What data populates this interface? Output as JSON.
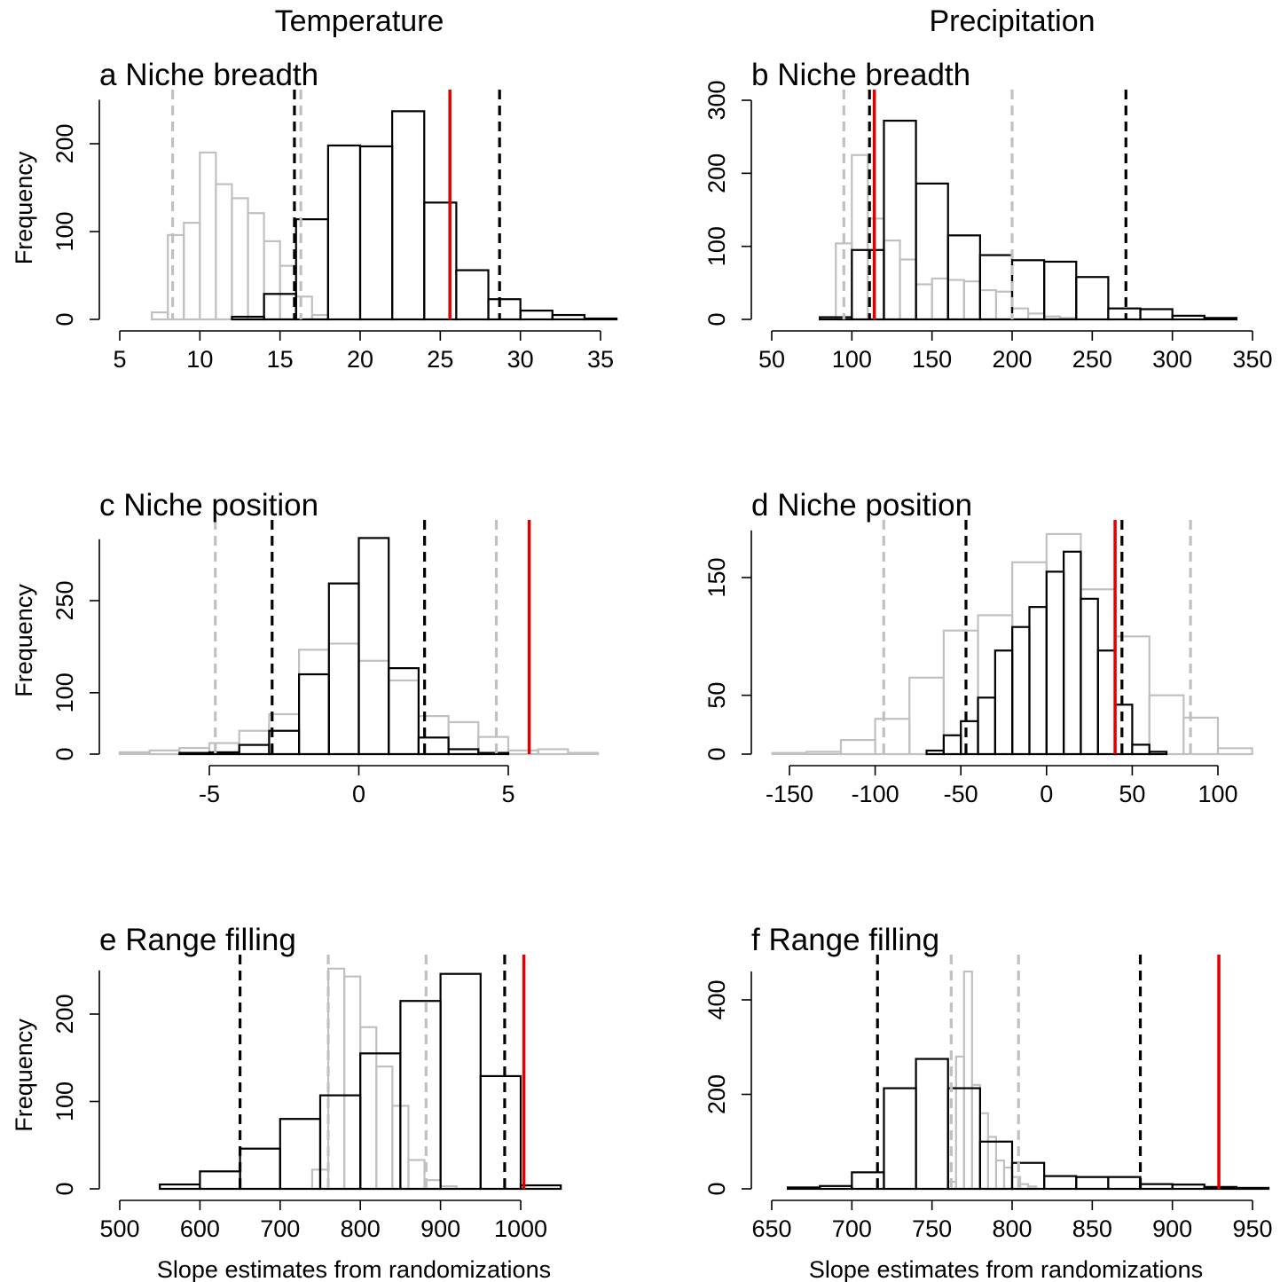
{
  "column_titles": [
    "Temperature",
    "Precipitation"
  ],
  "colors": {
    "randomized": "#000000",
    "null": "#c0c0c0",
    "observed": "#e00000"
  },
  "chart_data": [
    {
      "type": "histogram",
      "title": "a Niche breadth",
      "ylabel": "Frequency",
      "xlabel": "",
      "xlim": [
        5,
        36
      ],
      "ylim": [
        0,
        250
      ],
      "xticks": [
        5,
        10,
        15,
        20,
        25,
        30,
        35
      ],
      "yticks": [
        0,
        100,
        200
      ],
      "series": [
        {
          "color": "#c0c0c0",
          "bins": [
            [
              7,
              8,
              8
            ],
            [
              8,
              9,
              96
            ],
            [
              9,
              10,
              110
            ],
            [
              10,
              11,
              190
            ],
            [
              11,
              12,
              154
            ],
            [
              12,
              13,
              138
            ],
            [
              13,
              14,
              121
            ],
            [
              14,
              15,
              89
            ],
            [
              15,
              16,
              61
            ],
            [
              16,
              17,
              26
            ],
            [
              17,
              18,
              5
            ]
          ]
        },
        {
          "color": "#000000",
          "bins": [
            [
              12,
              14,
              3
            ],
            [
              14,
              16,
              29
            ],
            [
              16,
              18,
              114
            ],
            [
              18,
              20,
              198
            ],
            [
              20,
              22,
              197
            ],
            [
              22,
              24,
              237
            ],
            [
              24,
              26,
              133
            ],
            [
              26,
              28,
              56
            ],
            [
              28,
              30,
              23
            ],
            [
              30,
              32,
              10
            ],
            [
              32,
              34,
              5
            ],
            [
              34,
              36,
              1
            ]
          ]
        }
      ],
      "lines": [
        {
          "x": 8.3,
          "color": "#c0c0c0",
          "style": "dashed"
        },
        {
          "x": 16.3,
          "color": "#c0c0c0",
          "style": "dashed"
        },
        {
          "x": 15.9,
          "color": "#000000",
          "style": "dashed"
        },
        {
          "x": 28.7,
          "color": "#000000",
          "style": "dashed"
        },
        {
          "x": 25.6,
          "color": "#e00000",
          "style": "solid"
        }
      ]
    },
    {
      "type": "histogram",
      "title": "b  Niche breadth",
      "ylabel": "",
      "xlabel": "",
      "xlim": [
        50,
        350
      ],
      "ylim": [
        0,
        300
      ],
      "xticks": [
        50,
        100,
        150,
        200,
        250,
        300,
        350
      ],
      "yticks": [
        0,
        100,
        200,
        300
      ],
      "series": [
        {
          "color": "#c0c0c0",
          "bins": [
            [
              90,
              100,
              104
            ],
            [
              100,
              110,
              225
            ],
            [
              110,
              120,
              138
            ],
            [
              120,
              130,
              108
            ],
            [
              130,
              140,
              82
            ],
            [
              140,
              150,
              48
            ],
            [
              150,
              160,
              56
            ],
            [
              160,
              170,
              54
            ],
            [
              170,
              180,
              52
            ],
            [
              180,
              190,
              40
            ],
            [
              190,
              200,
              38
            ],
            [
              200,
              210,
              15
            ],
            [
              210,
              220,
              8
            ],
            [
              220,
              230,
              4
            ],
            [
              230,
              240,
              2
            ]
          ]
        },
        {
          "color": "#000000",
          "bins": [
            [
              80,
              100,
              3
            ],
            [
              100,
              120,
              95
            ],
            [
              120,
              140,
              272
            ],
            [
              140,
              160,
              186
            ],
            [
              160,
              180,
              115
            ],
            [
              180,
              200,
              88
            ],
            [
              200,
              220,
              81
            ],
            [
              220,
              240,
              79
            ],
            [
              240,
              260,
              58
            ],
            [
              260,
              280,
              15
            ],
            [
              280,
              300,
              14
            ],
            [
              300,
              320,
              5
            ],
            [
              320,
              340,
              2
            ]
          ]
        }
      ],
      "lines": [
        {
          "x": 95,
          "color": "#c0c0c0",
          "style": "dashed"
        },
        {
          "x": 200,
          "color": "#c0c0c0",
          "style": "dashed"
        },
        {
          "x": 111,
          "color": "#000000",
          "style": "dashed"
        },
        {
          "x": 271,
          "color": "#000000",
          "style": "dashed"
        },
        {
          "x": 114,
          "color": "#e00000",
          "style": "solid"
        }
      ]
    },
    {
      "type": "histogram",
      "title": "c Niche position",
      "ylabel": "Frequency",
      "xlabel": "",
      "xlim": [
        -8,
        8
      ],
      "ylim": [
        0,
        350
      ],
      "xticks": [
        -5,
        0,
        5
      ],
      "yticks": [
        0,
        100,
        250
      ],
      "series": [
        {
          "color": "#c0c0c0",
          "bins": [
            [
              -8,
              -7,
              3
            ],
            [
              -7,
              -6,
              6
            ],
            [
              -6,
              -5,
              10
            ],
            [
              -5,
              -4,
              18
            ],
            [
              -4,
              -3,
              38
            ],
            [
              -3,
              -2,
              65
            ],
            [
              -2,
              -1,
              170
            ],
            [
              -1,
              0,
              180
            ],
            [
              0,
              1,
              152
            ],
            [
              1,
              2,
              120
            ],
            [
              2,
              3,
              62
            ],
            [
              3,
              4,
              52
            ],
            [
              4,
              5,
              28
            ],
            [
              5,
              6,
              6
            ],
            [
              6,
              7,
              8
            ],
            [
              7,
              8,
              2
            ]
          ]
        },
        {
          "color": "#000000",
          "bins": [
            [
              -6,
              -5,
              2
            ],
            [
              -5,
              -4,
              3
            ],
            [
              -4,
              -3,
              15
            ],
            [
              -3,
              -2,
              38
            ],
            [
              -2,
              -1,
              130
            ],
            [
              -1,
              0,
              278
            ],
            [
              0,
              1,
              352
            ],
            [
              1,
              2,
              140
            ],
            [
              2,
              3,
              27
            ],
            [
              3,
              4,
              8
            ],
            [
              4,
              5,
              2
            ]
          ]
        }
      ],
      "lines": [
        {
          "x": -4.8,
          "color": "#c0c0c0",
          "style": "dashed"
        },
        {
          "x": 4.6,
          "color": "#c0c0c0",
          "style": "dashed"
        },
        {
          "x": -2.9,
          "color": "#000000",
          "style": "dashed"
        },
        {
          "x": 2.2,
          "color": "#000000",
          "style": "dashed"
        },
        {
          "x": 5.7,
          "color": "#e00000",
          "style": "solid"
        }
      ]
    },
    {
      "type": "histogram",
      "title": "d Niche position",
      "ylabel": "",
      "xlabel": "",
      "xlim": [
        -160,
        120
      ],
      "ylim": [
        0,
        190
      ],
      "xticks": [
        -150,
        -100,
        -50,
        0,
        50,
        100
      ],
      "yticks": [
        0,
        50,
        150
      ],
      "series": [
        {
          "color": "#c0c0c0",
          "bins": [
            [
              -160,
              -140,
              1
            ],
            [
              -140,
              -120,
              2
            ],
            [
              -120,
              -100,
              12
            ],
            [
              -100,
              -80,
              30
            ],
            [
              -80,
              -60,
              65
            ],
            [
              -60,
              -40,
              105
            ],
            [
              -40,
              -20,
              118
            ],
            [
              -20,
              0,
              163
            ],
            [
              0,
              20,
              187
            ],
            [
              20,
              40,
              140
            ],
            [
              40,
              60,
              100
            ],
            [
              60,
              80,
              50
            ],
            [
              80,
              100,
              31
            ],
            [
              100,
              120,
              5
            ]
          ]
        },
        {
          "color": "#000000",
          "bins": [
            [
              -70,
              -60,
              3
            ],
            [
              -60,
              -50,
              16
            ],
            [
              -50,
              -40,
              28
            ],
            [
              -40,
              -30,
              48
            ],
            [
              -30,
              -20,
              88
            ],
            [
              -20,
              -10,
              108
            ],
            [
              -10,
              0,
              125
            ],
            [
              0,
              10,
              155
            ],
            [
              10,
              20,
              172
            ],
            [
              20,
              30,
              132
            ],
            [
              30,
              40,
              88
            ],
            [
              40,
              50,
              42
            ],
            [
              50,
              60,
              8
            ],
            [
              60,
              70,
              2
            ]
          ]
        }
      ],
      "lines": [
        {
          "x": -95,
          "color": "#c0c0c0",
          "style": "dashed"
        },
        {
          "x": 84,
          "color": "#c0c0c0",
          "style": "dashed"
        },
        {
          "x": -47,
          "color": "#000000",
          "style": "dashed"
        },
        {
          "x": 44,
          "color": "#000000",
          "style": "dashed"
        },
        {
          "x": 40,
          "color": "#e00000",
          "style": "solid"
        }
      ]
    },
    {
      "type": "histogram",
      "title": "e Range filling",
      "ylabel": "Frequency",
      "xlabel": "Slope estimates from randomizations",
      "xlim": [
        500,
        1100
      ],
      "ylim": [
        0,
        250
      ],
      "xticks": [
        500,
        600,
        700,
        800,
        900,
        1000
      ],
      "yticks": [
        0,
        100,
        200
      ],
      "series": [
        {
          "color": "#c0c0c0",
          "bins": [
            [
              740,
              760,
              22
            ],
            [
              760,
              780,
              252
            ],
            [
              780,
              800,
              243
            ],
            [
              800,
              820,
              185
            ],
            [
              820,
              840,
              140
            ],
            [
              840,
              860,
              95
            ],
            [
              860,
              880,
              33
            ],
            [
              880,
              900,
              10
            ],
            [
              900,
              920,
              3
            ]
          ]
        },
        {
          "color": "#000000",
          "bins": [
            [
              550,
              600,
              5
            ],
            [
              600,
              650,
              20
            ],
            [
              650,
              700,
              46
            ],
            [
              700,
              750,
              80
            ],
            [
              750,
              800,
              107
            ],
            [
              800,
              850,
              155
            ],
            [
              850,
              900,
              215
            ],
            [
              900,
              950,
              246
            ],
            [
              950,
              1000,
              129
            ],
            [
              1000,
              1050,
              4
            ]
          ]
        }
      ],
      "lines": [
        {
          "x": 760,
          "color": "#c0c0c0",
          "style": "dashed"
        },
        {
          "x": 882,
          "color": "#c0c0c0",
          "style": "dashed"
        },
        {
          "x": 650,
          "color": "#000000",
          "style": "dashed"
        },
        {
          "x": 980,
          "color": "#000000",
          "style": "dashed"
        },
        {
          "x": 1004,
          "color": "#e00000",
          "style": "solid"
        }
      ]
    },
    {
      "type": "histogram",
      "title": "f Range filling",
      "ylabel": "",
      "xlabel": "Slope estimates from randomizations",
      "xlim": [
        650,
        960
      ],
      "ylim": [
        0,
        460
      ],
      "xticks": [
        650,
        700,
        750,
        800,
        850,
        900,
        950
      ],
      "yticks": [
        0,
        200,
        400
      ],
      "series": [
        {
          "color": "#c0c0c0",
          "bins": [
            [
              760,
              765,
              15
            ],
            [
              765,
              770,
              280
            ],
            [
              770,
              775,
              460
            ],
            [
              775,
              780,
              220
            ],
            [
              780,
              785,
              160
            ],
            [
              785,
              790,
              110
            ],
            [
              790,
              795,
              60
            ],
            [
              795,
              800,
              45
            ],
            [
              800,
              805,
              25
            ],
            [
              805,
              810,
              10
            ],
            [
              810,
              815,
              5
            ]
          ]
        },
        {
          "color": "#000000",
          "bins": [
            [
              660,
              680,
              3
            ],
            [
              680,
              700,
              6
            ],
            [
              700,
              720,
              35
            ],
            [
              720,
              740,
              213
            ],
            [
              740,
              760,
              275
            ],
            [
              760,
              780,
              213
            ],
            [
              780,
              800,
              100
            ],
            [
              800,
              820,
              55
            ],
            [
              820,
              840,
              27
            ],
            [
              840,
              860,
              25
            ],
            [
              860,
              880,
              25
            ],
            [
              880,
              900,
              10
            ],
            [
              900,
              920,
              9
            ],
            [
              920,
              940,
              4
            ],
            [
              940,
              960,
              2
            ]
          ]
        }
      ],
      "lines": [
        {
          "x": 762,
          "color": "#c0c0c0",
          "style": "dashed"
        },
        {
          "x": 804,
          "color": "#c0c0c0",
          "style": "dashed"
        },
        {
          "x": 716,
          "color": "#000000",
          "style": "dashed"
        },
        {
          "x": 880,
          "color": "#000000",
          "style": "dashed"
        },
        {
          "x": 929,
          "color": "#e00000",
          "style": "solid"
        }
      ]
    }
  ]
}
